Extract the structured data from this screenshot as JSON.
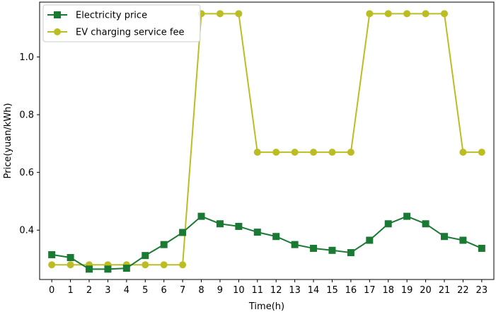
{
  "chart_data": {
    "type": "line",
    "title": "",
    "xlabel": "Time(h)",
    "ylabel": "Price(yuan/kWh)",
    "x": [
      0,
      1,
      2,
      3,
      4,
      5,
      6,
      7,
      8,
      9,
      10,
      11,
      12,
      13,
      14,
      15,
      16,
      17,
      18,
      19,
      20,
      21,
      22,
      23
    ],
    "x_tick_labels": [
      "0",
      "1",
      "2",
      "3",
      "4",
      "5",
      "6",
      "7",
      "8",
      "9",
      "10",
      "11",
      "12",
      "13",
      "14",
      "15",
      "16",
      "17",
      "18",
      "19",
      "20",
      "21",
      "22",
      "23"
    ],
    "y_ticks": [
      0.4,
      0.6,
      0.8,
      1.0
    ],
    "y_tick_labels": [
      "0.4",
      "0.6",
      "0.8",
      "1.0"
    ],
    "xlim": [
      -0.65,
      23.65
    ],
    "ylim": [
      0.229,
      1.19
    ],
    "grid": false,
    "legend_position": "top-left",
    "series": [
      {
        "name": "Electricity price",
        "color": "#1a7a34",
        "marker": "square",
        "values": [
          0.315,
          0.305,
          0.265,
          0.265,
          0.268,
          0.312,
          0.35,
          0.392,
          0.448,
          0.422,
          0.413,
          0.393,
          0.378,
          0.35,
          0.337,
          0.33,
          0.322,
          0.365,
          0.422,
          0.448,
          0.422,
          0.378,
          0.365,
          0.337
        ]
      },
      {
        "name": "EV charging service fee",
        "color": "#bcbd22",
        "marker": "circle",
        "values": [
          0.28,
          0.28,
          0.28,
          0.28,
          0.28,
          0.28,
          0.28,
          0.28,
          1.15,
          1.15,
          1.15,
          0.67,
          0.67,
          0.67,
          0.67,
          0.67,
          0.67,
          1.15,
          1.15,
          1.15,
          1.15,
          1.15,
          0.67,
          0.67
        ]
      }
    ]
  }
}
